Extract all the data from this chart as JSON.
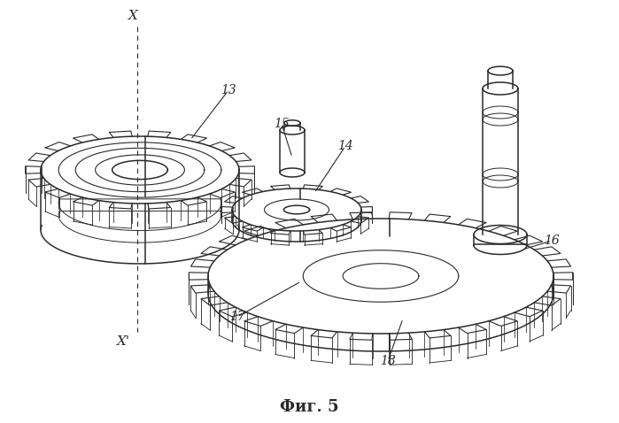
{
  "title": "Фиг. 5",
  "background_color": "#ffffff",
  "line_color": "#2a2a2a",
  "fig_width": 6.99,
  "fig_height": 4.78,
  "dpi": 100
}
